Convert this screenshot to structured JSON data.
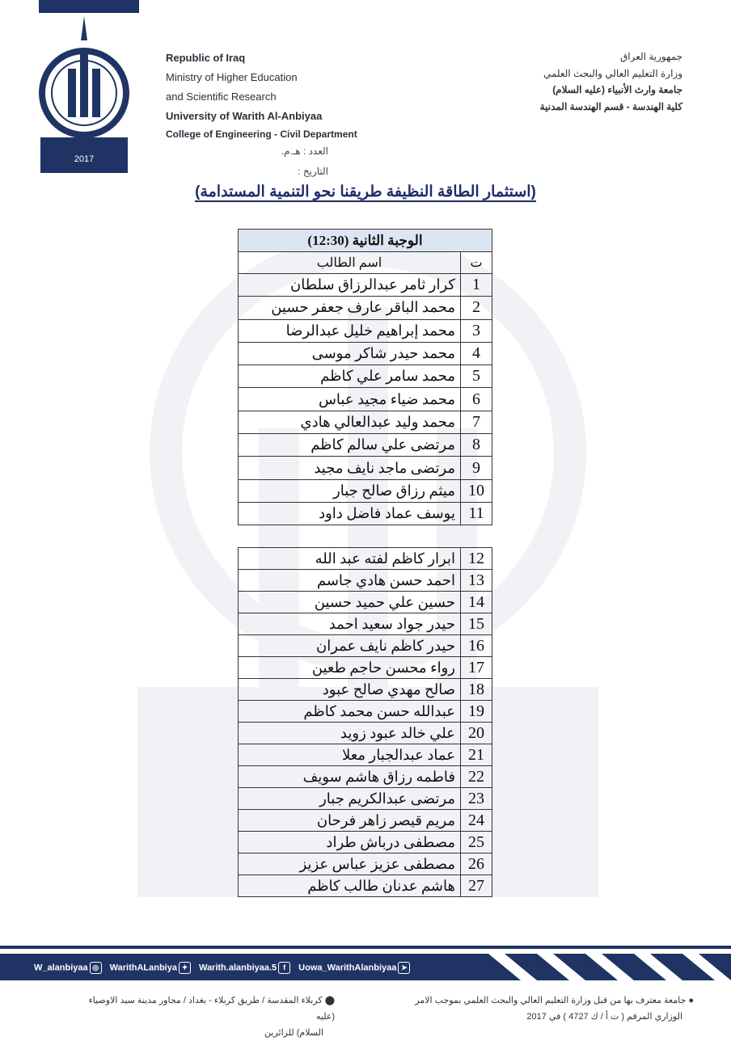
{
  "header": {
    "en": [
      "Republic of Iraq",
      "Ministry of Higher Education",
      "and Scientific Research",
      "University of Warith Al-Anbiyaa",
      "College of Engineering - Civil Department"
    ],
    "ar": [
      "جمهورية العراق",
      "وزارة التعليم العالي والبحث العلمي",
      "جامعة وارث الأنبياء (عليه السلام)",
      "كلية الهندسة - قسم الهندسة المدنية"
    ],
    "number_label": "العدد : هـ.م.",
    "date_label": "التاريخ :",
    "logo_text": "UNIVERSITY OF WARITH AL-ANBIYAA 2017"
  },
  "title": "(استثمار الطاقة النظيفة طريقنا نحو التنمية المستدامة)",
  "table1": {
    "heading": "الوجبة الثانية (12:30)",
    "col_no": "ت",
    "col_name": "اسم الطالب",
    "rows": [
      [
        "1",
        "كرار ثامر عبدالرزاق سلطان"
      ],
      [
        "2",
        "محمد الباقر عارف جعفر حسين"
      ],
      [
        "3",
        "محمد إبراهيم خليل عبدالرضا"
      ],
      [
        "4",
        "محمد حيدر شاكر موسى"
      ],
      [
        "5",
        "محمد سامر علي كاظم"
      ],
      [
        "6",
        "محمد ضياء مجيد عباس"
      ],
      [
        "7",
        "محمد وليد عبدالعالي هادي"
      ],
      [
        "8",
        "مرتضى علي سالم كاظم"
      ],
      [
        "9",
        "مرتضى ماجد نايف مجيد"
      ],
      [
        "10",
        "ميثم رزاق صالح جبار"
      ],
      [
        "11",
        "يوسف عماد فاضل داود"
      ]
    ]
  },
  "table2": {
    "rows": [
      [
        "12",
        "ابرار كاظم لفته عبد الله"
      ],
      [
        "13",
        "احمد حسن هادي جاسم"
      ],
      [
        "14",
        "حسين علي حميد حسين"
      ],
      [
        "15",
        "حيدر جواد سعيد احمد"
      ],
      [
        "16",
        "حيدر كاظم نايف عمران"
      ],
      [
        "17",
        "رواء محسن حاجم طعين"
      ],
      [
        "18",
        "صالح مهدي صالح عبود"
      ],
      [
        "19",
        "عبدالله حسن محمد كاظم"
      ],
      [
        "20",
        "علي خالد عبود زويد"
      ],
      [
        "21",
        "عماد عبدالجبار معلا"
      ],
      [
        "22",
        "فاطمه رزاق هاشم سويف"
      ],
      [
        "23",
        "مرتضى عبدالكريم جبار"
      ],
      [
        "24",
        "مريم قيصر زاهر فرحان"
      ],
      [
        "25",
        "مصطفى درباش طراد"
      ],
      [
        "26",
        "مصطفى عزيز عباس عزيز"
      ],
      [
        "27",
        "هاشم عدنان طالب كاظم"
      ]
    ]
  },
  "footer": {
    "social": [
      {
        "handle": "W_alanbiyaa",
        "icon": "instagram-icon",
        "glyph": "◎"
      },
      {
        "handle": "WarithALanbiya",
        "icon": "twitter-icon",
        "glyph": "✦"
      },
      {
        "handle": "Warith.alanbiyaa.5",
        "icon": "facebook-icon",
        "glyph": "f"
      },
      {
        "handle": "Uowa_WarithAlanbiyaa",
        "icon": "telegram-icon",
        "glyph": "➤"
      }
    ],
    "accreditation": [
      "جامعة معترف بها من قبل وزارة التعليم العالي والبحث العلمي بموجب الامر",
      "الوزاري المرقم ( ت أ / ك 4727 ) في 2017"
    ],
    "address": [
      "كربلاء المقدسة / طريق كربلاء - بغداد / مجاور مدينة سيد الاوصياء (عليه",
      "السلام) للزائرين"
    ]
  },
  "colors": {
    "navy": "#1f3464",
    "table_header": "#dce6f2",
    "title": "#1f2d6a"
  }
}
